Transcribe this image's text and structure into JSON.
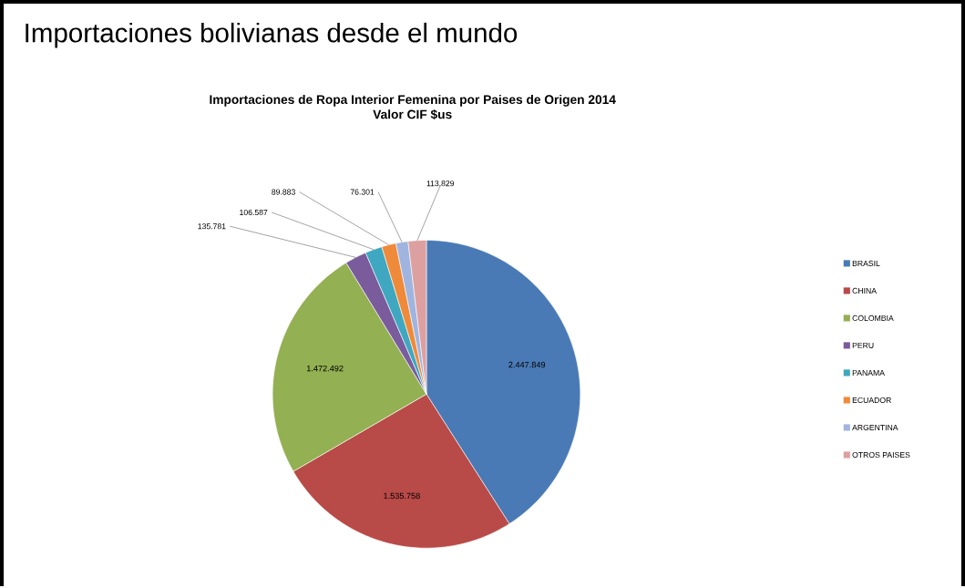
{
  "chart_data": {
    "type": "pie",
    "title": "Importaciones bolivianas desde el mundo",
    "subtitle": "Importaciones de Ropa Interior Femenina por Paises de Origen 2014 Valor CIF $us",
    "categories": [
      "BRASIL",
      "CHINA",
      "COLOMBIA",
      "PERU",
      "PANAMA",
      "ECUADOR",
      "ARGENTINA",
      "OTROS PAISES"
    ],
    "values": [
      2447849,
      1535758,
      1472492,
      135781,
      106587,
      89883,
      76301,
      113829
    ],
    "value_labels": [
      "2.447.849",
      "1.535.758",
      "1.472.492",
      "135.781",
      "106.587",
      "89.883",
      "76.301",
      "113.829"
    ],
    "colors": [
      "#4a7ab5",
      "#b84a47",
      "#93b052",
      "#7a5c9c",
      "#3fa7c0",
      "#ef8a3a",
      "#9fb5df",
      "#dca0a0"
    ],
    "legend": "right"
  }
}
